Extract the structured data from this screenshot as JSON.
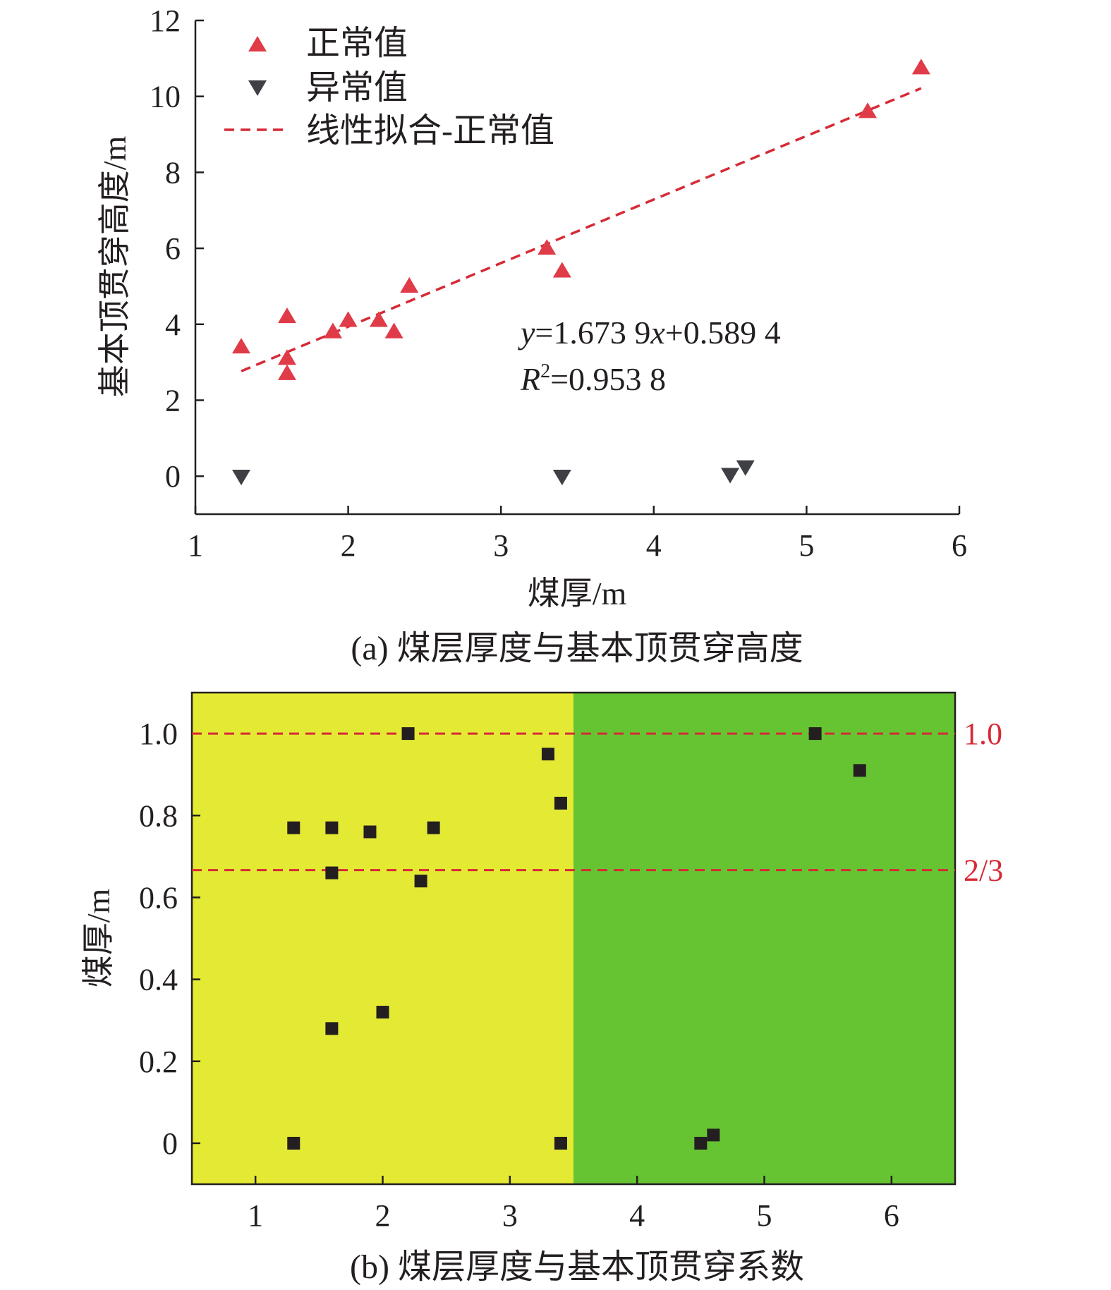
{
  "chart_data": [
    {
      "type": "scatter",
      "panel": "a",
      "caption": "(a) 煤层厚度与基本顶贯穿高度",
      "xlabel": "煤厚/m",
      "ylabel": "基本顶贯穿高度/m",
      "xlim": [
        1,
        6
      ],
      "ylim": [
        -1,
        12
      ],
      "xticks": [
        "1",
        "2",
        "3",
        "4",
        "5",
        "6"
      ],
      "yticks": [
        "0",
        "2",
        "4",
        "6",
        "8",
        "10",
        "12"
      ],
      "grid": false,
      "legend_position": "top-left",
      "colors": {
        "normal": "#e03b48",
        "abnormal": "#3f3f46",
        "fit": "#d62a35"
      },
      "series": [
        {
          "name": "正常值",
          "marker": "triangle-up",
          "points": [
            [
              1.3,
              3.4
            ],
            [
              1.6,
              4.2
            ],
            [
              1.6,
              3.1
            ],
            [
              1.6,
              2.7
            ],
            [
              1.9,
              3.8
            ],
            [
              2.0,
              4.1
            ],
            [
              2.2,
              4.1
            ],
            [
              2.3,
              3.8
            ],
            [
              2.4,
              5.0
            ],
            [
              3.3,
              6.0
            ],
            [
              3.4,
              5.4
            ],
            [
              5.4,
              9.6
            ],
            [
              5.75,
              10.75
            ]
          ]
        },
        {
          "name": "异常值",
          "marker": "triangle-down",
          "points": [
            [
              1.3,
              0.0
            ],
            [
              3.4,
              0.0
            ],
            [
              4.5,
              0.05
            ],
            [
              4.6,
              0.25
            ]
          ]
        },
        {
          "name": "线性拟合-正常值",
          "style": "dashed-line",
          "slope": 1.6739,
          "intercept": 0.5894,
          "x_range": [
            1.3,
            5.75
          ]
        }
      ],
      "annotations": {
        "eq_y": "y",
        "eq_body1": "=1.673 9",
        "eq_x": "x",
        "eq_body2": "+0.589 4",
        "r2_r": "R",
        "r2_sup": "2",
        "r2_body": "=0.953 8"
      }
    },
    {
      "type": "scatter",
      "panel": "b",
      "caption": "(b) 煤层厚度与基本顶贯穿系数",
      "xlabel": "",
      "ylabel": "煤厚/m",
      "xlim": [
        0.5,
        6.5
      ],
      "ylim": [
        -0.1,
        1.1
      ],
      "xticks": [
        "1",
        "2",
        "3",
        "4",
        "5",
        "6"
      ],
      "yticks": [
        "0",
        "0.2",
        "0.4",
        "0.6",
        "0.8",
        "1.0"
      ],
      "grid": false,
      "regions": [
        {
          "x_from": 0.5,
          "x_to": 3.5,
          "color": "#e4e934"
        },
        {
          "x_from": 3.5,
          "x_to": 6.5,
          "color": "#66c433"
        }
      ],
      "reference_lines": [
        {
          "y": 1.0,
          "label": "1.0",
          "color": "#d62a35"
        },
        {
          "y": 0.6667,
          "label": "2/3",
          "color": "#d62a35"
        }
      ],
      "series": [
        {
          "marker": "square",
          "color": "#231f20",
          "points": [
            [
              1.3,
              0.77
            ],
            [
              1.6,
              0.77
            ],
            [
              1.9,
              0.76
            ],
            [
              2.4,
              0.77
            ],
            [
              1.6,
              0.66
            ],
            [
              2.3,
              0.64
            ],
            [
              2.2,
              1.0
            ],
            [
              3.3,
              0.95
            ],
            [
              3.4,
              0.83
            ],
            [
              1.6,
              0.28
            ],
            [
              2.0,
              0.32
            ],
            [
              1.3,
              0.0
            ],
            [
              3.4,
              0.0
            ],
            [
              4.5,
              0.0
            ],
            [
              4.6,
              0.02
            ],
            [
              5.4,
              1.0
            ],
            [
              5.75,
              0.91
            ]
          ]
        }
      ]
    }
  ]
}
